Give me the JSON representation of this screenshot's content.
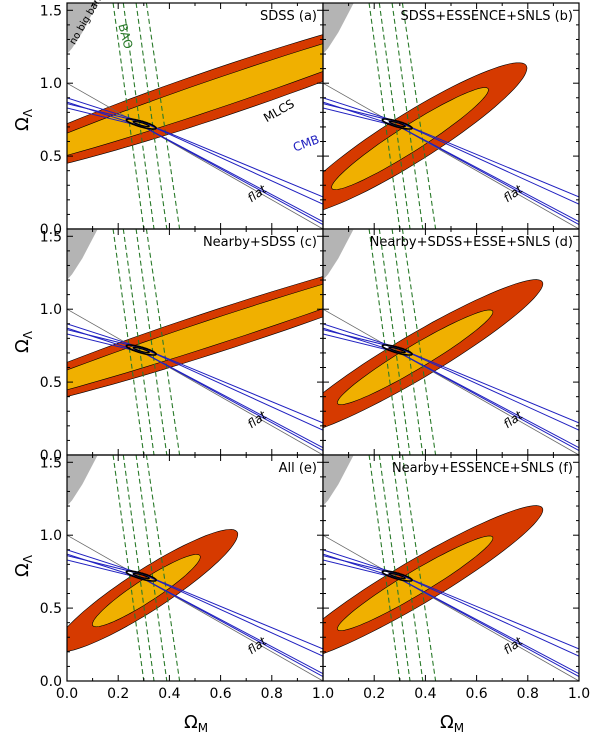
{
  "figure": {
    "ylabel": "Ω",
    "ylabel_sub": "Λ",
    "xlabel": "Ω",
    "xlabel_sub": "M",
    "xticks": [
      "0.0",
      "0.2",
      "0.4",
      "0.6",
      "0.8",
      "1.0"
    ],
    "yticks": [
      "0.0",
      "0.5",
      "1.0",
      "1.5"
    ]
  },
  "colors": {
    "outer_contour": "#d63a00",
    "inner_contour": "#f0b000",
    "no_big_bang": "#b4b4b4",
    "bao": "#2a7a2a",
    "cmb": "#2020c0",
    "combined": "#000000",
    "flat_line": "#666666"
  },
  "chart_data": [
    {
      "type": "contour",
      "panel": "a",
      "title": "SDSS (a)",
      "annotations": {
        "no_big_bang": "no big bang",
        "bao": "BAO",
        "mlcs": "MLCS",
        "cmb": "CMB",
        "flat": "flat"
      },
      "xlim": [
        0,
        1
      ],
      "ylim": [
        0,
        1.55
      ],
      "sn_contours": {
        "center": [
          0.62,
          0.95
        ],
        "angle_deg": 31,
        "outer_semi_axes": [
          1.15,
          0.15
        ],
        "inner_semi_axes": [
          1.05,
          0.09
        ]
      },
      "flat_line": [
        [
          0,
          1
        ],
        [
          1,
          0
        ]
      ]
    },
    {
      "type": "contour",
      "panel": "b",
      "title": "SDSS+ESSENCE+SNLS (b)",
      "annotations": {
        "flat": "flat"
      },
      "xlim": [
        0,
        1
      ],
      "ylim": [
        0,
        1.55
      ],
      "sn_contours": {
        "center": [
          0.34,
          0.62
        ],
        "angle_deg": 49,
        "outer_semi_axes": [
          0.68,
          0.13
        ],
        "inner_semi_axes": [
          0.46,
          0.07
        ]
      },
      "flat_line": [
        [
          0,
          1
        ],
        [
          1,
          0
        ]
      ]
    },
    {
      "type": "contour",
      "panel": "c",
      "title": "Nearby+SDSS (c)",
      "annotations": {
        "flat": "flat"
      },
      "xlim": [
        0,
        1
      ],
      "ylim": [
        0,
        1.55
      ],
      "sn_contours": {
        "center": [
          0.62,
          0.87
        ],
        "angle_deg": 30,
        "outer_semi_axes": [
          1.15,
          0.13
        ],
        "inner_semi_axes": [
          1.05,
          0.08
        ]
      },
      "flat_line": [
        [
          0,
          1
        ],
        [
          1,
          0
        ]
      ]
    },
    {
      "type": "contour",
      "panel": "d",
      "title": "Nearby+SDSS+ESSE+SNLS (d)",
      "annotations": {
        "flat": "flat"
      },
      "xlim": [
        0,
        1
      ],
      "ylim": [
        0,
        1.55
      ],
      "sn_contours": {
        "center": [
          0.36,
          0.67
        ],
        "angle_deg": 47,
        "outer_semi_axes": [
          0.72,
          0.12
        ],
        "inner_semi_axes": [
          0.44,
          0.065
        ]
      },
      "flat_line": [
        [
          0,
          1
        ],
        [
          1,
          0
        ]
      ]
    },
    {
      "type": "contour",
      "panel": "e",
      "title": "All (e)",
      "annotations": {
        "flat": "flat"
      },
      "xlim": [
        0,
        1
      ],
      "ylim": [
        0,
        1.55
      ],
      "sn_contours": {
        "center": [
          0.31,
          0.62
        ],
        "angle_deg": 50,
        "outer_semi_axes": [
          0.54,
          0.11
        ],
        "inner_semi_axes": [
          0.32,
          0.06
        ]
      },
      "flat_line": [
        [
          0,
          1
        ],
        [
          1,
          0
        ]
      ]
    },
    {
      "type": "contour",
      "panel": "f",
      "title": "Nearby+ESSENCE+SNLS (f)",
      "annotations": {
        "flat": "flat"
      },
      "xlim": [
        0,
        1
      ],
      "ylim": [
        0,
        1.55
      ],
      "sn_contours": {
        "center": [
          0.36,
          0.67
        ],
        "angle_deg": 47,
        "outer_semi_axes": [
          0.72,
          0.12
        ],
        "inner_semi_axes": [
          0.44,
          0.065
        ]
      },
      "flat_line": [
        [
          0,
          1
        ],
        [
          1,
          0
        ]
      ]
    }
  ]
}
